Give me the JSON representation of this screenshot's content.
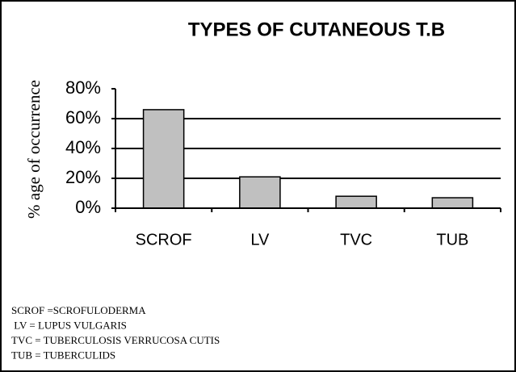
{
  "chart_data": {
    "type": "bar",
    "title": "TYPES OF CUTANEOUS T.B",
    "y_label": "% age of occurrence",
    "categories": [
      "SCROF",
      "LV",
      "TVC",
      "TUB"
    ],
    "values": [
      66,
      21,
      8,
      7
    ],
    "color": "#c0c0c0",
    "ylim": [
      0,
      80
    ],
    "yticks": [
      {
        "value": 0,
        "label": "0%"
      },
      {
        "value": 20,
        "label": "20%"
      },
      {
        "value": 40,
        "label": "40%"
      },
      {
        "value": 60,
        "label": "60%"
      },
      {
        "value": 80,
        "label": "80%"
      }
    ],
    "grid": true,
    "notes": [
      "SCROF =SCROFULODERMA",
      " LV = LUPUS VULGARIS",
      "TVC = TUBERCULOSIS VERRUCOSA CUTIS",
      "TUB = TUBERCULIDS"
    ]
  }
}
